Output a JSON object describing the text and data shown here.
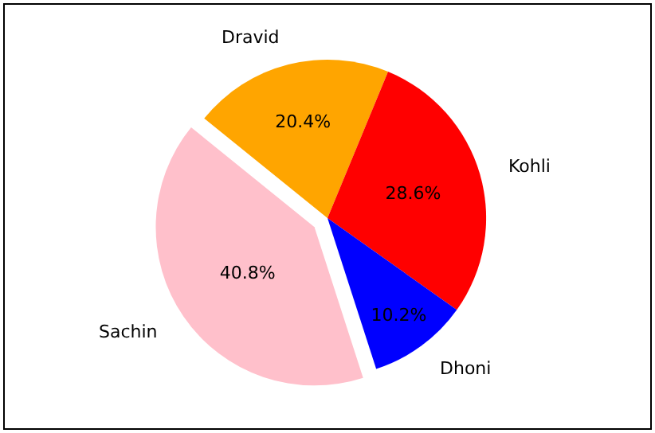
{
  "chart_data": {
    "type": "pie",
    "categories": [
      "Dravid",
      "Kohli",
      "Dhoni",
      "Sachin"
    ],
    "values": [
      20.4,
      28.6,
      10.2,
      40.8
    ],
    "value_labels": [
      "20.4%",
      "28.6%",
      "10.2%",
      "40.8%"
    ],
    "colors": [
      "#ffa500",
      "#ff0000",
      "#0000ff",
      "#ffc0cb"
    ],
    "legend": false
  }
}
